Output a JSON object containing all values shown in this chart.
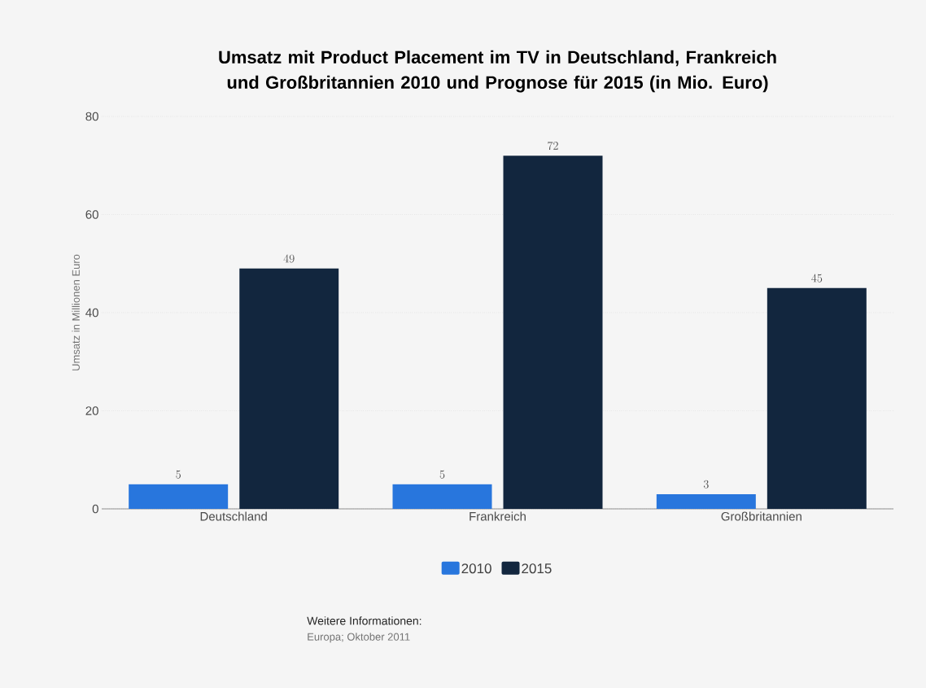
{
  "chart_data": {
    "type": "bar",
    "title": "Umsatz mit Product Placement im TV in Deutschland, Frankreich und Großbritannien 2010 und Prognose für 2015 (in Mio. Euro)",
    "ylabel": "Umsatz in Millionen Euro",
    "categories": [
      "Deutschland",
      "Frankreich",
      "Großbritannien"
    ],
    "series": [
      {
        "name": "2010",
        "color": "#2876dd",
        "values": [
          5,
          5,
          3
        ]
      },
      {
        "name": "2015",
        "color": "#12263e",
        "values": [
          49,
          72,
          45
        ]
      }
    ],
    "ylim": [
      0,
      80
    ],
    "yticks": [
      0,
      20,
      40,
      60,
      80
    ],
    "grid": "y",
    "legend": "bottom",
    "data_labels": true,
    "annotations": [
      "Weitere Informationen:",
      "Europa; Oktober 2011"
    ]
  }
}
